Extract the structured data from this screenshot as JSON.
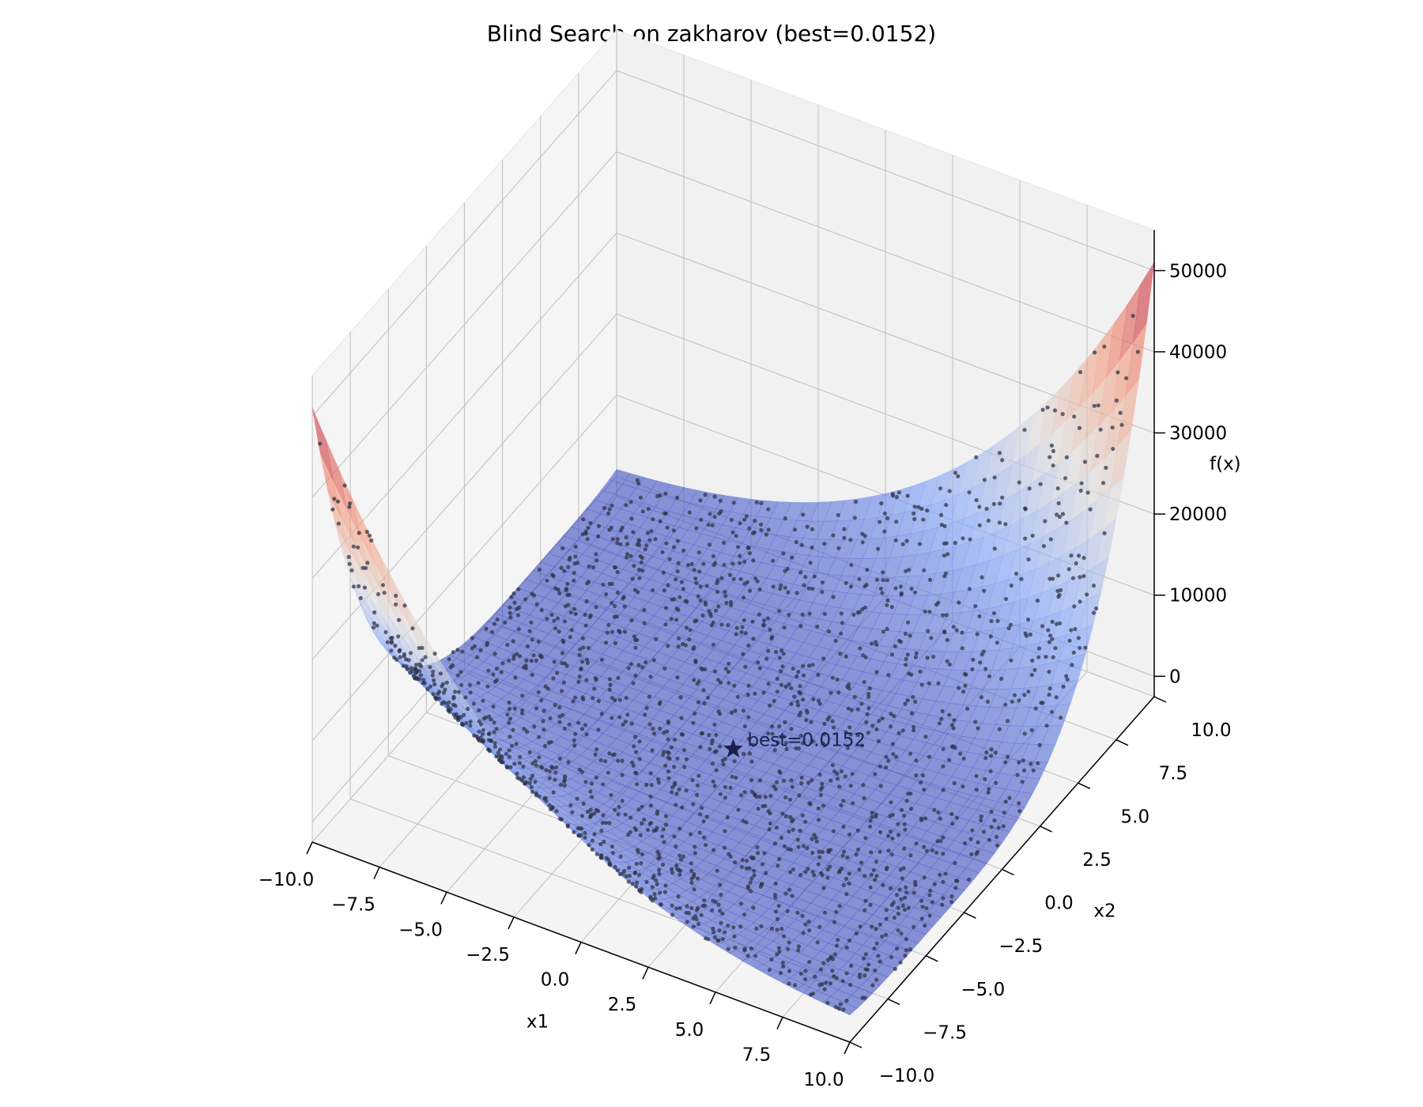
{
  "chart_data": {
    "type": "scatter",
    "title": "Blind Search on zakharov (best=0.0152)",
    "function": "zakharov",
    "xlabel": "x1",
    "ylabel": "x2",
    "zlabel": "f(x)",
    "xlim": [
      -10,
      10
    ],
    "ylim": [
      -10,
      10
    ],
    "zlim": [
      -2500,
      55000
    ],
    "x_ticks": [
      "−10.0",
      "−7.5",
      "−5.0",
      "−2.5",
      "0.0",
      "2.5",
      "5.0",
      "7.5",
      "10.0"
    ],
    "y_ticks": [
      "−10.0",
      "−7.5",
      "−5.0",
      "−2.5",
      "0.0",
      "2.5",
      "5.0",
      "7.5",
      "10.0"
    ],
    "z_ticks": [
      "0",
      "10000",
      "20000",
      "30000",
      "40000",
      "50000"
    ],
    "surface": {
      "colormap": "coolwarm",
      "alpha": 0.6
    },
    "points": {
      "count": 2000,
      "color": "#2e3245"
    },
    "best": {
      "x1": 0.0,
      "x2": 0.0,
      "value": 0.0152,
      "label": "best=0.0152",
      "marker": "star"
    },
    "grid": true
  }
}
